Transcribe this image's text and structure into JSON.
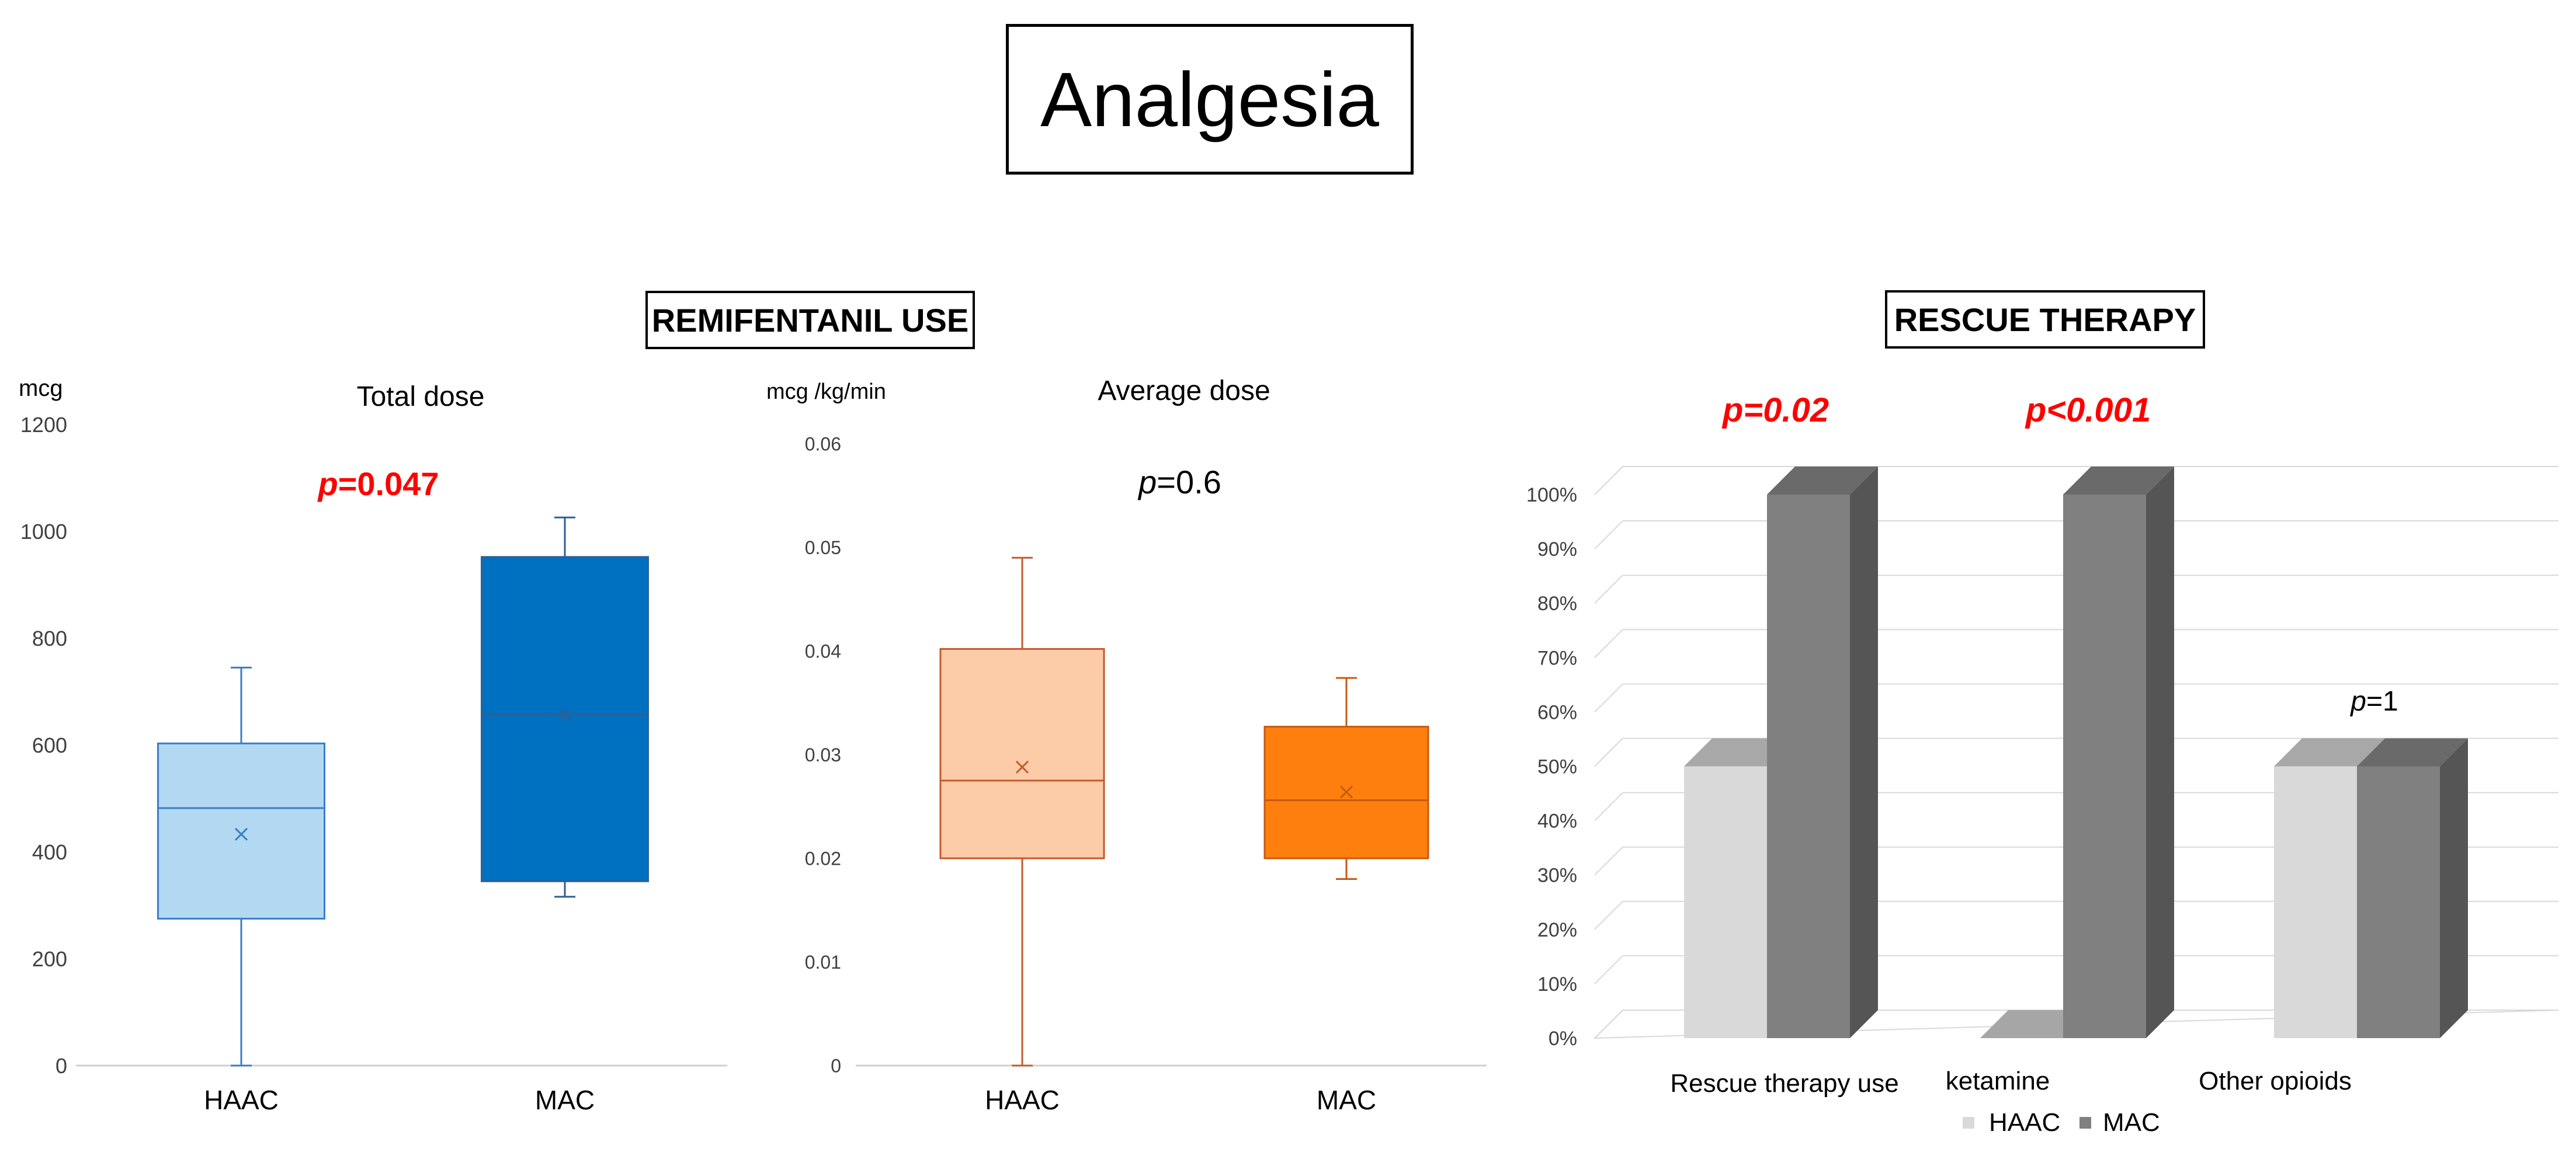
{
  "title": "Analgesia",
  "sections": {
    "remifentanil": "REMIFENTANIL USE",
    "rescue": "RESCUE THERAPY"
  },
  "colors": {
    "haac_total": "#b3d9f2",
    "haac_total_line": "#3a7dc9",
    "mac_total": "#0070c0",
    "mac_total_line": "#2e5f96",
    "haac_avg": "#fccba8",
    "haac_avg_line": "#c55a2b",
    "mac_avg": "#ff7f0e",
    "mac_avg_line": "#c55a11",
    "bar_haac": "#d9d9d9",
    "bar_mac": "#808080",
    "pvalue_sig": "#ff0000"
  },
  "chart_data": [
    {
      "type": "box",
      "title": "Total dose",
      "ylabel": "mcg",
      "ylim": [
        0,
        1200
      ],
      "yticks": [
        "0",
        "200",
        "400",
        "600",
        "800",
        "1000",
        "1200"
      ],
      "categories": [
        "HAAC",
        "MAC"
      ],
      "pvalue": {
        "prefix": "p",
        "text": "=0.047"
      },
      "boxes": [
        {
          "name": "HAAC",
          "min": 0,
          "q1": 275,
          "median": 482,
          "q3": 603,
          "max": 745,
          "mean": 433
        },
        {
          "name": "MAC",
          "min": 316,
          "q1": 345,
          "median": 657,
          "q3": 952,
          "max": 1026,
          "mean": 657
        }
      ]
    },
    {
      "type": "box",
      "title": "Average dose",
      "ylabel": "mcg /kg/min",
      "ylim": [
        0,
        0.06
      ],
      "yticks": [
        "0",
        "0.01",
        "0.02",
        "0.03",
        "0.04",
        "0.05",
        "0.06"
      ],
      "categories": [
        "HAAC",
        "MAC"
      ],
      "pvalue": {
        "prefix": "p",
        "text": "=0.6"
      },
      "boxes": [
        {
          "name": "HAAC",
          "min": 0,
          "q1": 0.02,
          "median": 0.0275,
          "q3": 0.0402,
          "max": 0.049,
          "mean": 0.0288
        },
        {
          "name": "MAC",
          "min": 0.018,
          "q1": 0.02,
          "median": 0.0256,
          "q3": 0.0327,
          "max": 0.0374,
          "mean": 0.0264
        }
      ]
    },
    {
      "type": "bar",
      "title": "RESCUE THERAPY",
      "ylim": [
        0,
        100
      ],
      "yticks": [
        "0%",
        "10%",
        "20%",
        "30%",
        "40%",
        "50%",
        "60%",
        "70%",
        "80%",
        "90%",
        "100%"
      ],
      "categories": [
        "Rescue therapy use",
        "ketamine",
        "Other opioids"
      ],
      "series": [
        {
          "name": "HAAC",
          "values": [
            50,
            0,
            50
          ]
        },
        {
          "name": "MAC",
          "values": [
            100,
            100,
            50
          ]
        }
      ],
      "pvalues": [
        {
          "prefix": "p",
          "text": "=0.02",
          "significant": true
        },
        {
          "prefix": "p",
          "text": "<0.001",
          "significant": true
        },
        {
          "prefix": "p",
          "text": "=1",
          "significant": false
        }
      ],
      "legend": [
        "HAAC",
        "MAC"
      ]
    }
  ]
}
